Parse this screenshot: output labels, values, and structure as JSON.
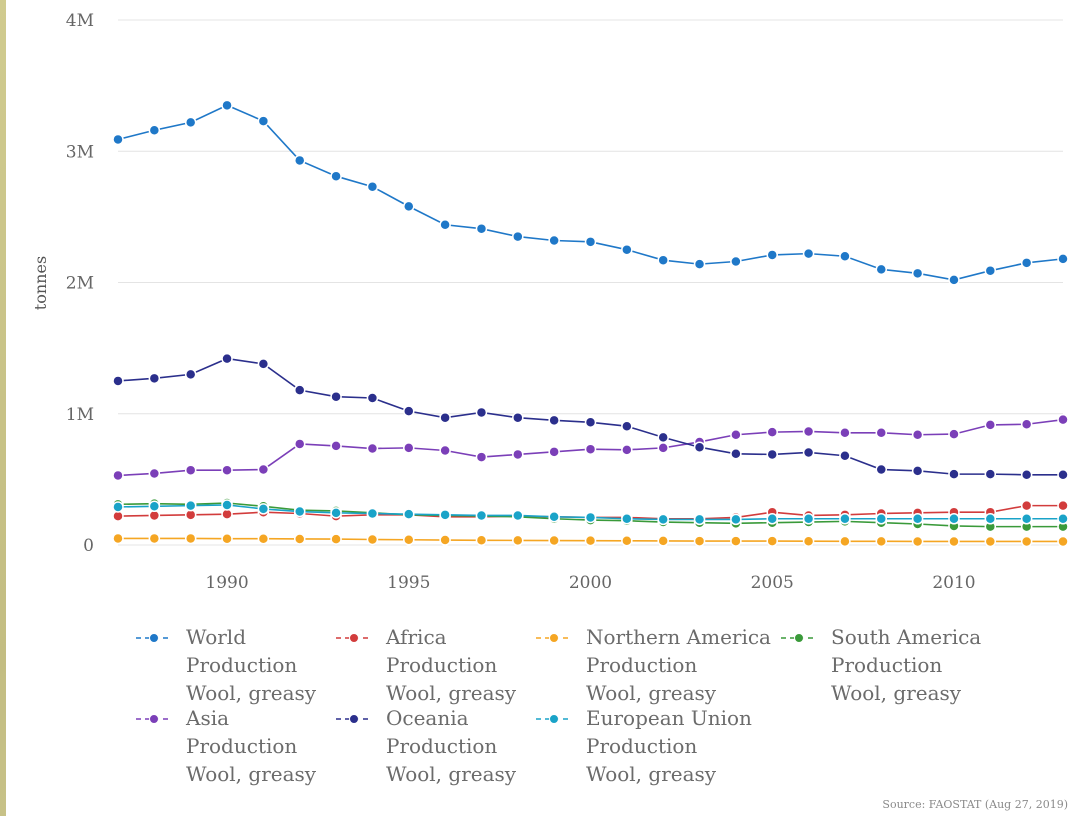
{
  "chart_data": {
    "type": "line",
    "title": "",
    "xlabel": "",
    "ylabel": "tonnes",
    "x": [
      1987,
      1988,
      1989,
      1990,
      1991,
      1992,
      1993,
      1994,
      1995,
      1996,
      1997,
      1998,
      1999,
      2000,
      2001,
      2002,
      2003,
      2004,
      2005,
      2006,
      2007,
      2008,
      2009,
      2010,
      2011,
      2012,
      2013
    ],
    "xlim": [
      1987,
      2013
    ],
    "ylim": [
      0,
      4000000
    ],
    "x_ticks": [
      1990,
      1995,
      2000,
      2005,
      2010
    ],
    "y_ticks": [
      {
        "value": 0,
        "label": "0"
      },
      {
        "value": 1000000,
        "label": "1M"
      },
      {
        "value": 2000000,
        "label": "2M"
      },
      {
        "value": 3000000,
        "label": "3M"
      },
      {
        "value": 4000000,
        "label": "4M"
      }
    ],
    "grid": "horizontal",
    "legend_position": "bottom",
    "series": [
      {
        "name": "World Production Wool, greasy",
        "lines": [
          "World",
          "Production",
          "Wool, greasy"
        ],
        "color": "#1f78c8",
        "values": [
          3090000,
          3160000,
          3220000,
          3350000,
          3230000,
          2930000,
          2810000,
          2730000,
          2580000,
          2440000,
          2410000,
          2350000,
          2320000,
          2310000,
          2250000,
          2170000,
          2140000,
          2160000,
          2210000,
          2220000,
          2200000,
          2100000,
          2070000,
          2020000,
          2090000,
          2150000,
          2180000
        ]
      },
      {
        "name": "Africa Production Wool, greasy",
        "lines": [
          "Africa",
          "Production",
          "Wool, greasy"
        ],
        "color": "#d23c3c",
        "values": [
          220000,
          225000,
          230000,
          235000,
          250000,
          240000,
          220000,
          230000,
          230000,
          215000,
          215000,
          220000,
          215000,
          210000,
          210000,
          200000,
          200000,
          210000,
          250000,
          225000,
          230000,
          240000,
          245000,
          250000,
          250000,
          300000,
          300000
        ]
      },
      {
        "name": "Northern America Production Wool, greasy",
        "lines": [
          "Northern America",
          "Production",
          "Wool, greasy"
        ],
        "color": "#f5a623",
        "values": [
          50000,
          50000,
          50000,
          48000,
          48000,
          46000,
          45000,
          42000,
          40000,
          38000,
          36000,
          35000,
          34000,
          33000,
          32000,
          31000,
          30000,
          30000,
          30000,
          29000,
          28000,
          28000,
          27000,
          27000,
          27000,
          27000,
          27000
        ]
      },
      {
        "name": "South America Production Wool, greasy",
        "lines": [
          "South America",
          "Production",
          "Wool, greasy"
        ],
        "color": "#3a9a3a",
        "values": [
          310000,
          315000,
          310000,
          320000,
          295000,
          265000,
          260000,
          245000,
          230000,
          225000,
          220000,
          215000,
          200000,
          190000,
          185000,
          175000,
          170000,
          165000,
          170000,
          175000,
          180000,
          170000,
          160000,
          145000,
          140000,
          140000,
          140000
        ]
      },
      {
        "name": "Asia Production Wool, greasy",
        "lines": [
          "Asia",
          "Production",
          "Wool, greasy"
        ],
        "color": "#7b3fb8",
        "values": [
          530000,
          545000,
          570000,
          570000,
          575000,
          770000,
          755000,
          735000,
          740000,
          720000,
          670000,
          690000,
          710000,
          730000,
          725000,
          740000,
          785000,
          840000,
          860000,
          865000,
          855000,
          855000,
          840000,
          845000,
          915000,
          920000,
          955000
        ]
      },
      {
        "name": "Oceania Production Wool, greasy",
        "lines": [
          "Oceania",
          "Production",
          "Wool, greasy"
        ],
        "color": "#2b2f8c",
        "values": [
          1250000,
          1270000,
          1300000,
          1420000,
          1380000,
          1180000,
          1130000,
          1120000,
          1020000,
          970000,
          1010000,
          970000,
          950000,
          935000,
          905000,
          820000,
          745000,
          695000,
          690000,
          705000,
          680000,
          575000,
          565000,
          540000,
          540000,
          535000,
          535000
        ]
      },
      {
        "name": "European Union Production Wool, greasy",
        "lines": [
          "European Union",
          "Production",
          "Wool, greasy"
        ],
        "color": "#1aa3c8",
        "values": [
          290000,
          295000,
          300000,
          305000,
          275000,
          255000,
          245000,
          240000,
          235000,
          230000,
          225000,
          225000,
          215000,
          210000,
          200000,
          195000,
          195000,
          195000,
          200000,
          200000,
          200000,
          200000,
          200000,
          200000,
          200000,
          200000,
          200000
        ]
      }
    ],
    "source": "Source: FAOSTAT (Aug 27, 2019)"
  }
}
